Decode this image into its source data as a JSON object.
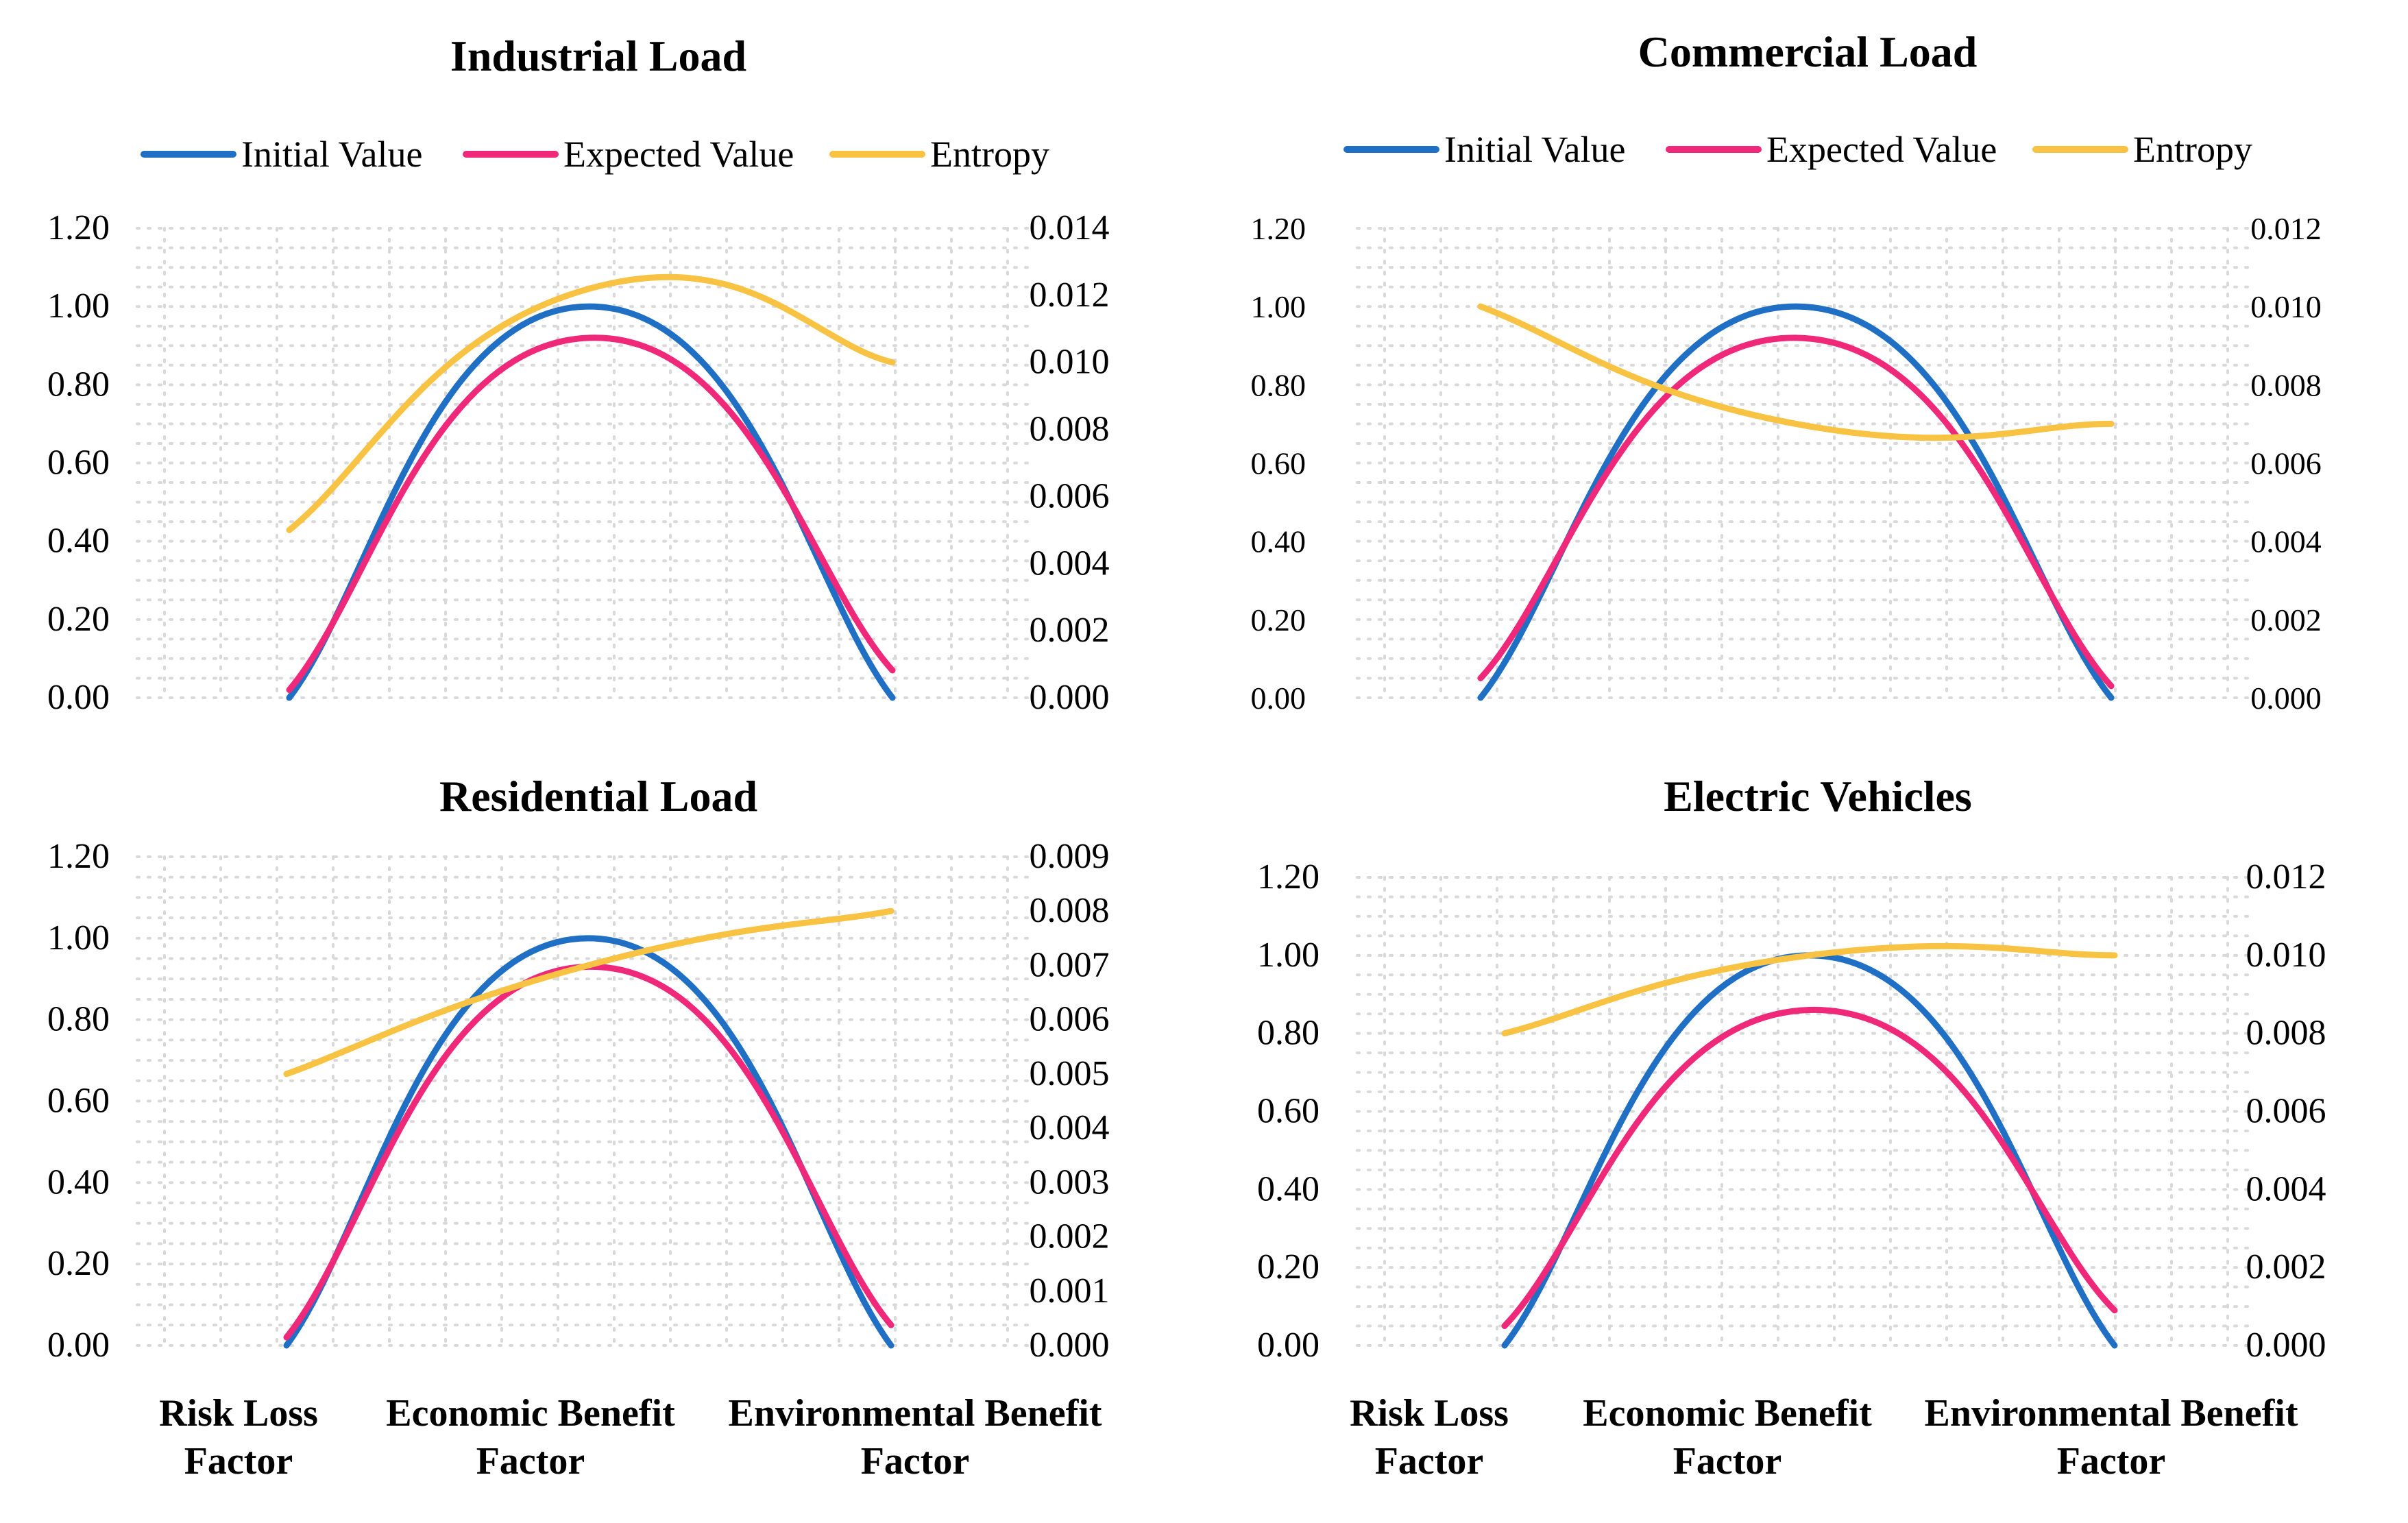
{
  "categories": [
    [
      "Risk Loss",
      "Factor"
    ],
    [
      "Economic Benefit",
      "Factor"
    ],
    [
      "Environmental Benefit",
      "Factor"
    ]
  ],
  "colors": {
    "initial": "#1f6fc5",
    "expected": "#f0287a",
    "entropy": "#f8c243",
    "grid": "#d9d9d9"
  },
  "chart_data": [
    {
      "type": "line",
      "title": "Industrial Load",
      "legend": [
        "Initial Value",
        "Expected Value",
        "Entropy"
      ],
      "categories": [
        "Risk Loss Factor",
        "Economic Benefit Factor",
        "Environmental Benefit Factor"
      ],
      "y_left": {
        "ticks": [
          "0.00",
          "0.20",
          "0.40",
          "0.60",
          "0.80",
          "1.00",
          "1.20"
        ],
        "range": [
          0,
          1.2
        ]
      },
      "y_right": {
        "ticks": [
          "0.000",
          "0.002",
          "0.004",
          "0.006",
          "0.008",
          "0.010",
          "0.012",
          "0.014"
        ],
        "range": [
          0,
          0.014
        ]
      },
      "series": [
        {
          "name": "Initial Value",
          "axis": "left",
          "values": [
            0.0,
            1.0,
            0.0
          ]
        },
        {
          "name": "Expected Value",
          "axis": "left",
          "values": [
            0.02,
            0.92,
            0.07
          ]
        },
        {
          "name": "Entropy",
          "axis": "right",
          "values": [
            0.005,
            0.0122,
            0.01
          ]
        }
      ]
    },
    {
      "type": "line",
      "title": "Commercial Load",
      "legend": [
        "Initial Value",
        "Expected Value",
        "Entropy"
      ],
      "categories": [
        "Risk Loss Factor",
        "Economic Benefit Factor",
        "Environmental Benefit Factor"
      ],
      "y_left": {
        "ticks": [
          "0.00",
          "0.20",
          "0.40",
          "0.60",
          "0.80",
          "1.00",
          "1.20"
        ],
        "range": [
          0,
          1.2
        ]
      },
      "y_right": {
        "ticks": [
          "0.000",
          "0.002",
          "0.004",
          "0.006",
          "0.008",
          "0.010",
          "0.012"
        ],
        "range": [
          0,
          0.012
        ]
      },
      "series": [
        {
          "name": "Initial Value",
          "axis": "left",
          "values": [
            0.0,
            1.0,
            0.0
          ]
        },
        {
          "name": "Expected Value",
          "axis": "left",
          "values": [
            0.05,
            0.92,
            0.03
          ]
        },
        {
          "name": "Entropy",
          "axis": "right",
          "values": [
            0.01,
            0.007,
            0.007
          ]
        }
      ]
    },
    {
      "type": "line",
      "title": "Residential Load",
      "legend": [],
      "categories": [
        "Risk Loss Factor",
        "Economic Benefit Factor",
        "Environmental Benefit Factor"
      ],
      "y_left": {
        "ticks": [
          "0.00",
          "0.20",
          "0.40",
          "0.60",
          "0.80",
          "1.00",
          "1.20"
        ],
        "range": [
          0,
          1.2
        ]
      },
      "y_right": {
        "ticks": [
          "0.000",
          "0.001",
          "0.002",
          "0.003",
          "0.004",
          "0.005",
          "0.006",
          "0.007",
          "0.008",
          "0.009"
        ],
        "range": [
          0,
          0.009
        ]
      },
      "series": [
        {
          "name": "Initial Value",
          "axis": "left",
          "values": [
            0.0,
            1.0,
            0.0
          ]
        },
        {
          "name": "Expected Value",
          "axis": "left",
          "values": [
            0.02,
            0.93,
            0.05
          ]
        },
        {
          "name": "Entropy",
          "axis": "right",
          "values": [
            0.005,
            0.007,
            0.008
          ]
        }
      ]
    },
    {
      "type": "line",
      "title": "Electric Vehicles",
      "legend": [],
      "categories": [
        "Risk Loss Factor",
        "Economic Benefit Factor",
        "Environmental Benefit Factor"
      ],
      "y_left": {
        "ticks": [
          "0.00",
          "0.20",
          "0.40",
          "0.60",
          "0.80",
          "1.00",
          "1.20"
        ],
        "range": [
          0,
          1.2
        ]
      },
      "y_right": {
        "ticks": [
          "0.000",
          "0.002",
          "0.004",
          "0.006",
          "0.008",
          "0.010",
          "0.012"
        ],
        "range": [
          0,
          0.012
        ]
      },
      "series": [
        {
          "name": "Initial Value",
          "axis": "left",
          "values": [
            0.0,
            1.0,
            0.0
          ]
        },
        {
          "name": "Expected Value",
          "axis": "left",
          "values": [
            0.05,
            0.86,
            0.09
          ]
        },
        {
          "name": "Entropy",
          "axis": "right",
          "values": [
            0.008,
            0.01,
            0.01
          ]
        }
      ]
    }
  ]
}
